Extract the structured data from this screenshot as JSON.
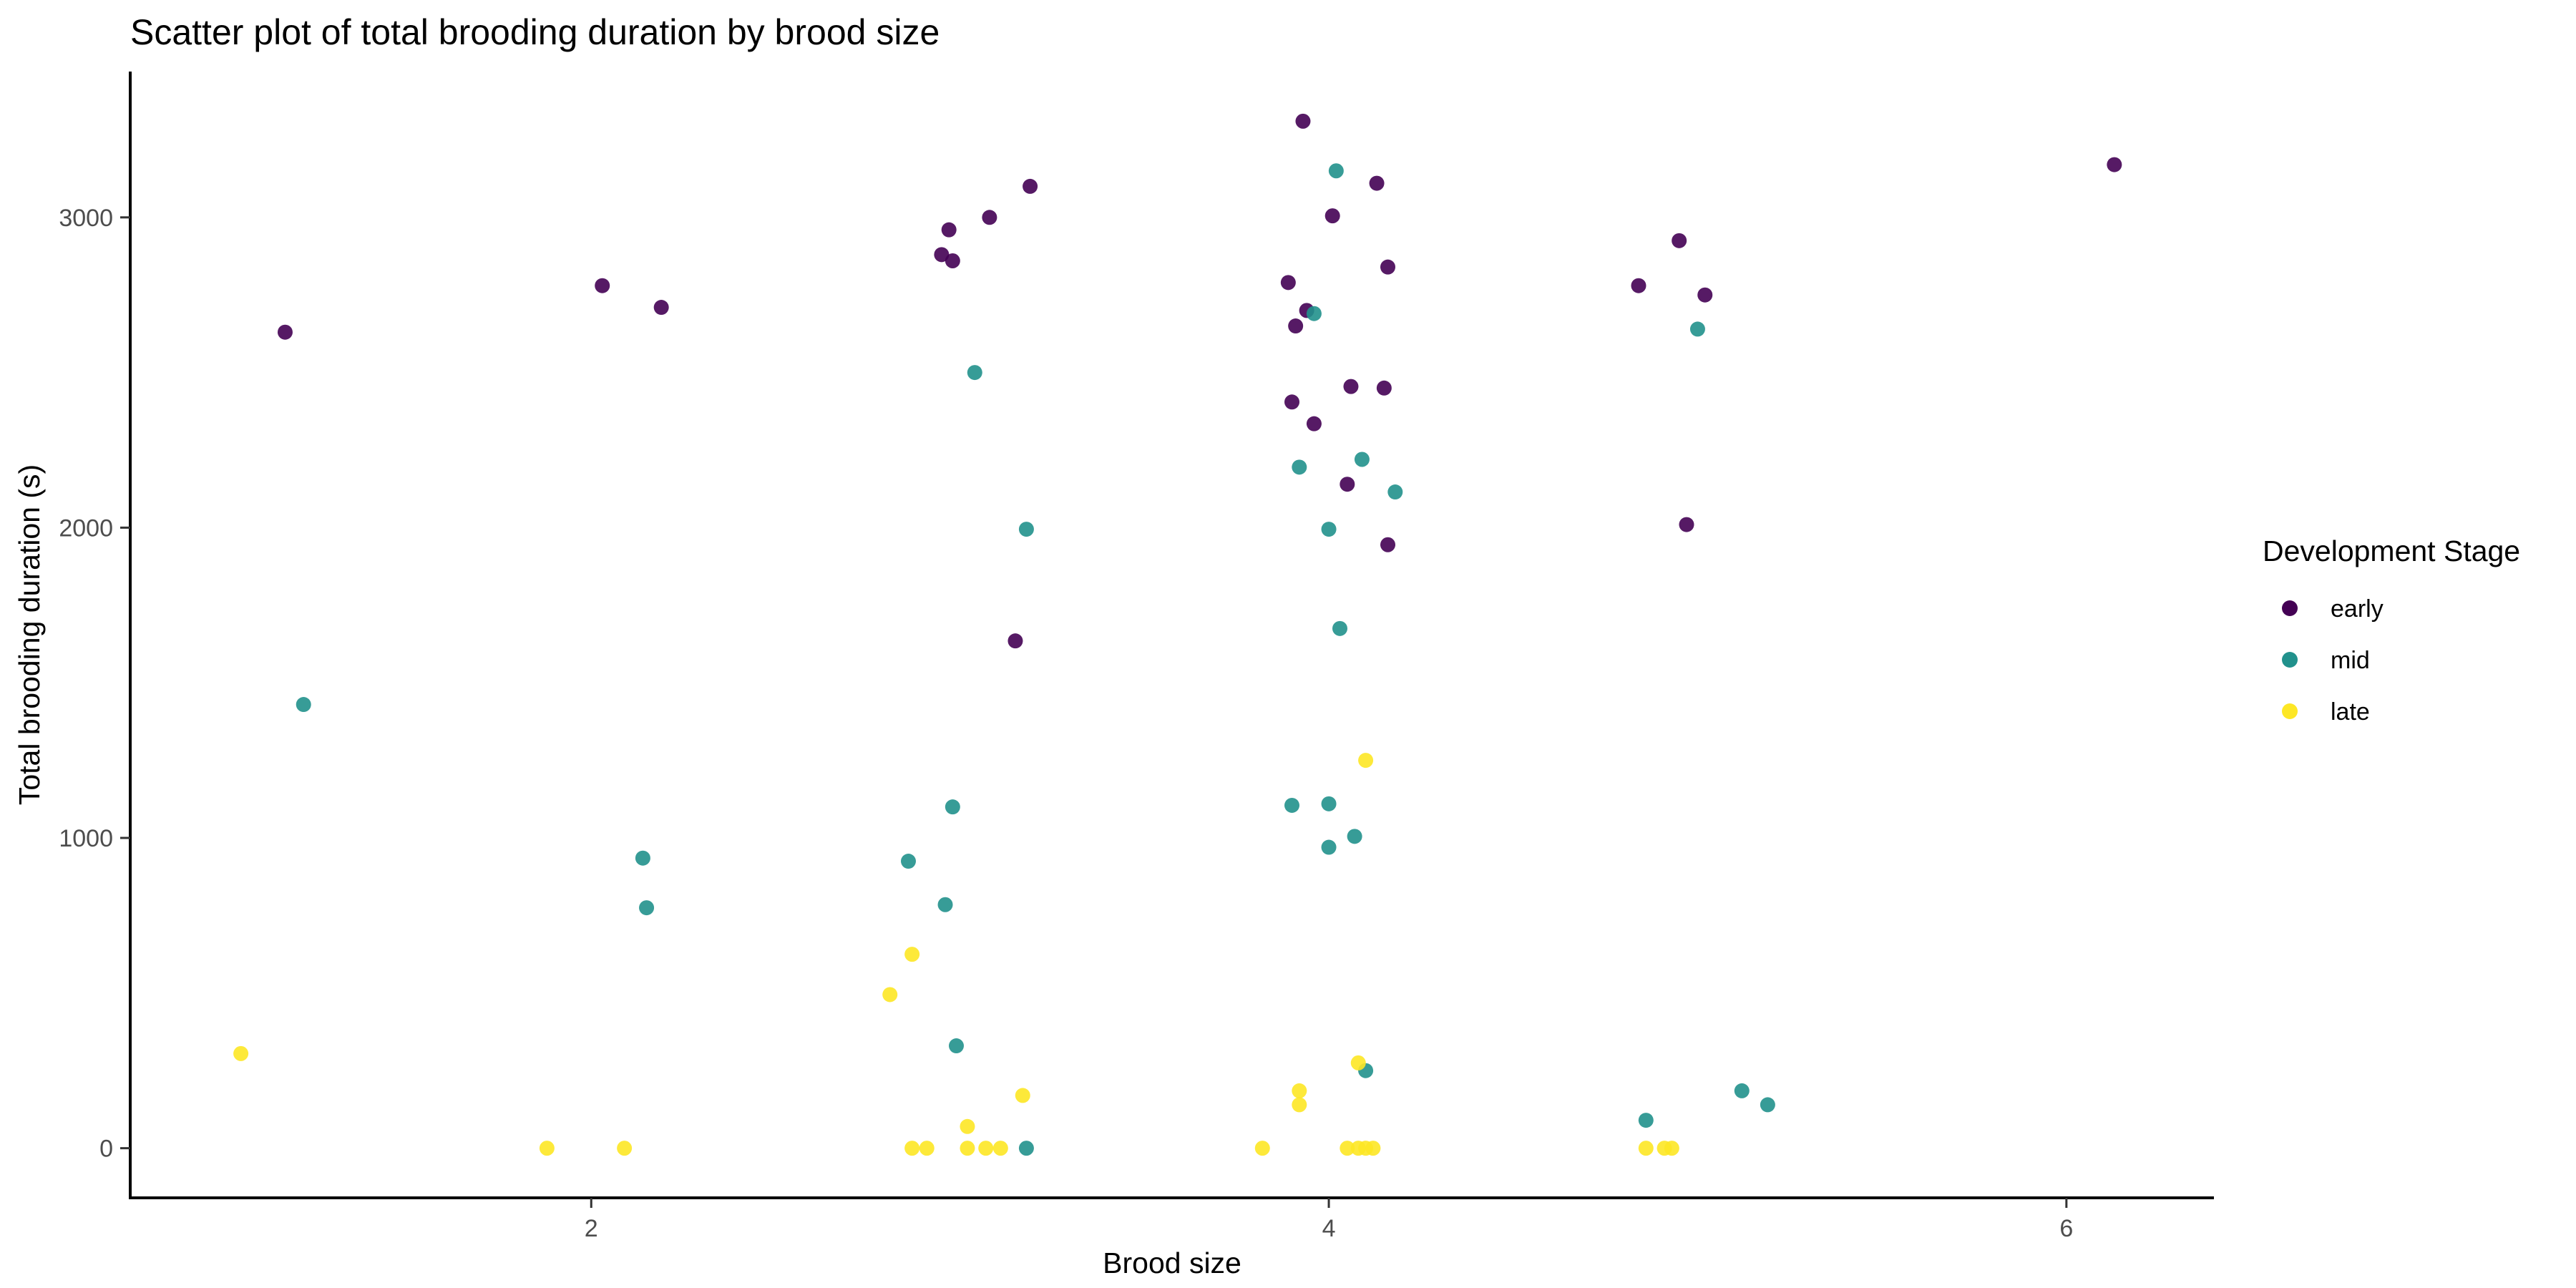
{
  "chart_data": {
    "type": "scatter",
    "title": "Scatter plot of total brooding duration by brood size",
    "xlabel": "Brood size",
    "ylabel": "Total brooding duration (s)",
    "xlim": [
      0.75,
      6.4
    ],
    "ylim": [
      -160,
      3470
    ],
    "x_ticks": [
      2,
      4,
      6
    ],
    "y_ticks": [
      0,
      1000,
      2000,
      3000
    ],
    "grid": false,
    "legend": {
      "title": "Development Stage",
      "position": "right"
    },
    "series": [
      {
        "name": "early",
        "color": "#440154",
        "points": [
          [
            1.17,
            2630
          ],
          [
            2.03,
            2780
          ],
          [
            2.19,
            2710
          ],
          [
            2.95,
            2880
          ],
          [
            2.97,
            2960
          ],
          [
            2.98,
            2860
          ],
          [
            3.08,
            3000
          ],
          [
            3.15,
            1635
          ],
          [
            3.19,
            3100
          ],
          [
            3.89,
            2790
          ],
          [
            3.91,
            2650
          ],
          [
            3.9,
            2405
          ],
          [
            3.93,
            3310
          ],
          [
            3.94,
            2700
          ],
          [
            3.96,
            2335
          ],
          [
            4.01,
            3005
          ],
          [
            4.05,
            2140
          ],
          [
            4.06,
            2455
          ],
          [
            4.13,
            3110
          ],
          [
            4.15,
            2450
          ],
          [
            4.16,
            2840
          ],
          [
            4.16,
            1945
          ],
          [
            4.84,
            2780
          ],
          [
            4.95,
            2925
          ],
          [
            4.97,
            2010
          ],
          [
            5.02,
            2750
          ],
          [
            6.13,
            3170
          ]
        ]
      },
      {
        "name": "mid",
        "color": "#21918c",
        "points": [
          [
            1.22,
            1430
          ],
          [
            2.14,
            935
          ],
          [
            2.15,
            775
          ],
          [
            2.86,
            925
          ],
          [
            2.96,
            785
          ],
          [
            2.98,
            1100
          ],
          [
            2.99,
            330
          ],
          [
            3.04,
            2500
          ],
          [
            3.18,
            1995
          ],
          [
            3.18,
            0
          ],
          [
            3.9,
            1105
          ],
          [
            3.92,
            2195
          ],
          [
            3.96,
            2690
          ],
          [
            4.0,
            1110
          ],
          [
            4.0,
            970
          ],
          [
            4.0,
            1995
          ],
          [
            4.02,
            3150
          ],
          [
            4.03,
            1675
          ],
          [
            4.07,
            1005
          ],
          [
            4.09,
            2220
          ],
          [
            4.1,
            250
          ],
          [
            4.18,
            2115
          ],
          [
            4.86,
            90
          ],
          [
            5.0,
            2640
          ],
          [
            5.12,
            185
          ],
          [
            5.19,
            140
          ]
        ]
      },
      {
        "name": "late",
        "color": "#fde725",
        "points": [
          [
            1.05,
            305
          ],
          [
            1.88,
            0
          ],
          [
            2.09,
            0
          ],
          [
            2.81,
            495
          ],
          [
            2.87,
            625
          ],
          [
            2.87,
            0
          ],
          [
            2.91,
            0
          ],
          [
            3.02,
            70
          ],
          [
            3.02,
            0
          ],
          [
            3.07,
            0
          ],
          [
            3.11,
            0
          ],
          [
            3.17,
            170
          ],
          [
            3.82,
            0
          ],
          [
            3.92,
            185
          ],
          [
            3.92,
            140
          ],
          [
            4.05,
            0
          ],
          [
            4.08,
            275
          ],
          [
            4.08,
            0
          ],
          [
            4.1,
            1250
          ],
          [
            4.1,
            0
          ],
          [
            4.12,
            0
          ],
          [
            4.86,
            0
          ],
          [
            4.91,
            0
          ],
          [
            4.93,
            0
          ]
        ]
      }
    ]
  }
}
